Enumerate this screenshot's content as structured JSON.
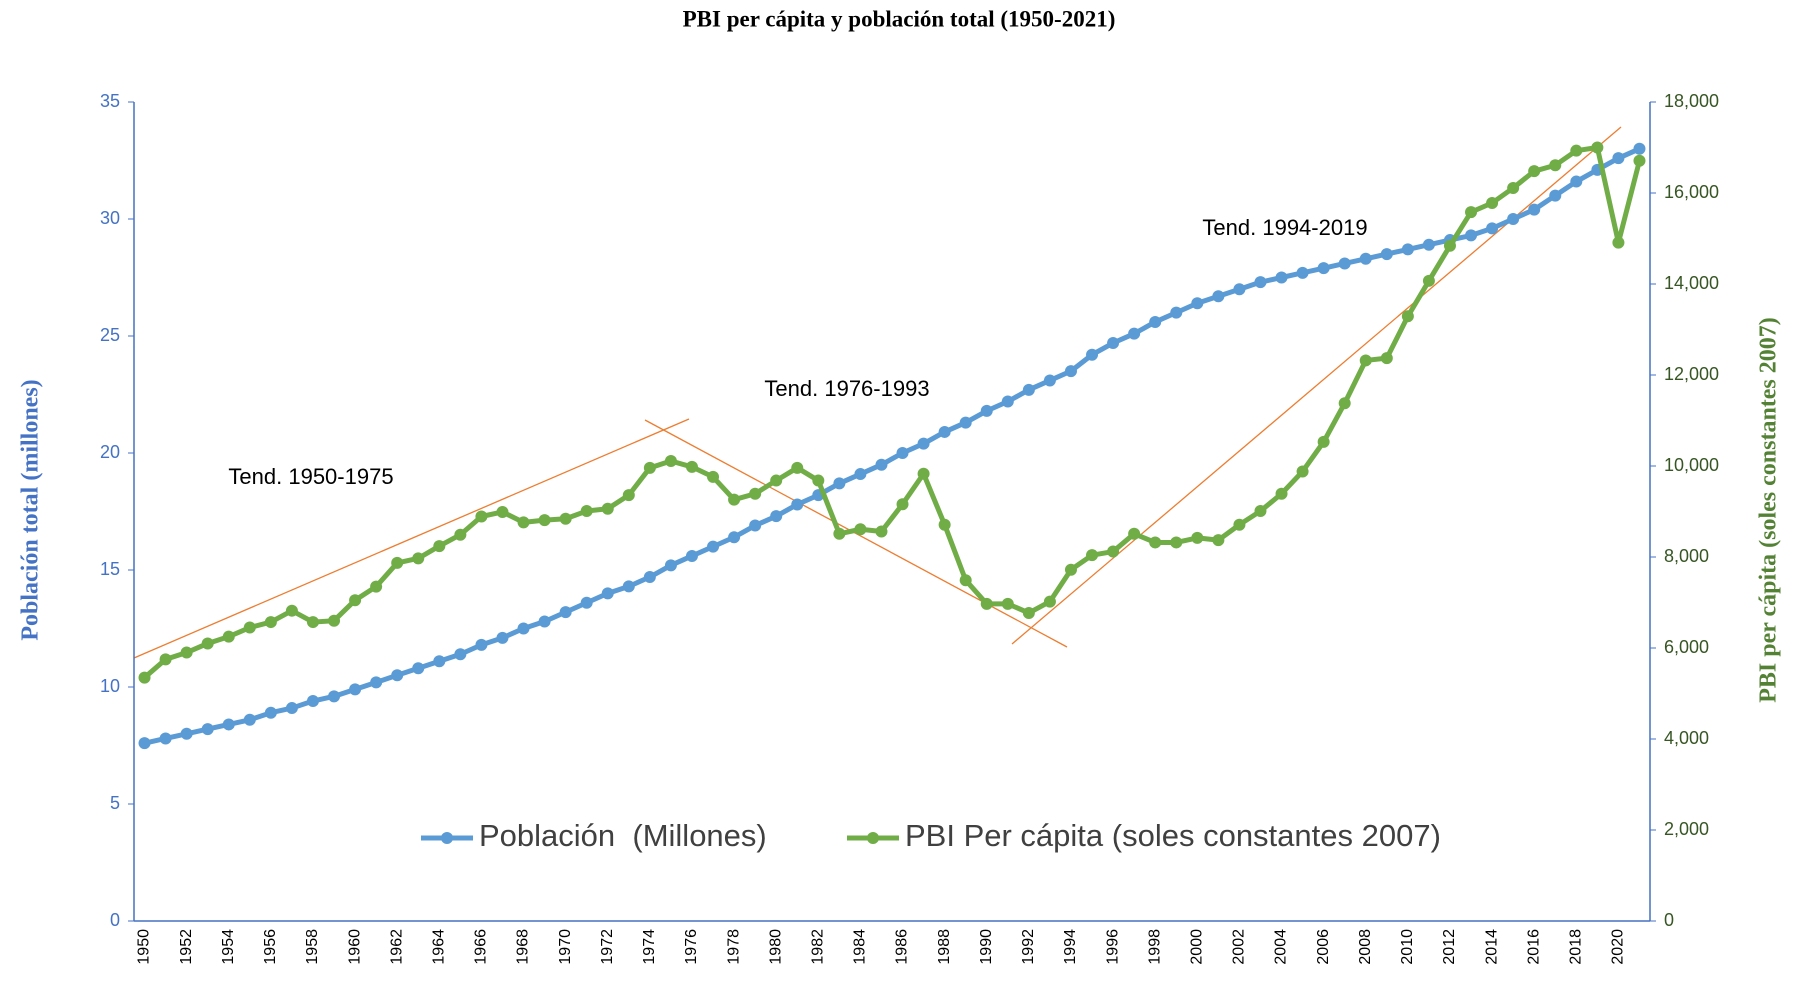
{
  "chart_data": {
    "type": "line",
    "title": "PBI per cápita y población total (1950-2021)",
    "ylabel": "Población total (millones)",
    "y2label": "PBI per cápita (soles constantes 2007)",
    "annotations": [
      "Tend. 1950-1975",
      "Tend. 1976-1993",
      "Tend. 1994-2019"
    ],
    "categories": [
      "1950",
      null,
      "1952",
      null,
      "1954",
      null,
      "1956",
      null,
      "1958",
      null,
      "1960",
      null,
      "1962",
      null,
      "1964",
      null,
      "1966",
      null,
      "1968",
      null,
      "1970",
      null,
      "1972",
      null,
      "1974",
      null,
      "1976",
      null,
      "1978",
      null,
      "1980",
      null,
      "1982",
      null,
      "1984",
      null,
      "1986",
      null,
      "1988",
      null,
      "1990",
      null,
      "1992",
      null,
      "1994",
      null,
      "1996",
      null,
      "1998",
      null,
      "2000",
      null,
      "2002",
      null,
      "2004",
      null,
      "2006",
      null,
      "2008",
      null,
      "2010",
      null,
      "2012",
      null,
      "2014",
      null,
      "2016",
      null,
      "2018",
      null,
      "2020",
      null
    ],
    "series": [
      {
        "name": "Población  (Millones)",
        "color": "#5b9bd5",
        "axis": "y",
        "values": [
          7.6,
          7.8,
          8.0,
          8.2,
          8.4,
          8.6,
          8.9,
          9.1,
          9.4,
          9.6,
          9.9,
          10.2,
          10.5,
          10.8,
          11.1,
          11.4,
          11.8,
          12.1,
          12.5,
          12.8,
          13.2,
          13.6,
          14.0,
          14.3,
          14.7,
          15.2,
          15.6,
          16.0,
          16.4,
          16.9,
          17.3,
          17.8,
          18.2,
          18.7,
          19.1,
          19.5,
          20.0,
          20.4,
          20.9,
          21.3,
          21.8,
          22.2,
          22.7,
          23.1,
          23.5,
          24.2,
          24.7,
          25.1,
          25.6,
          26.0,
          26.4,
          26.7,
          27.0,
          27.3,
          27.5,
          27.7,
          27.9,
          28.1,
          28.3,
          28.5,
          28.7,
          28.9,
          29.1,
          29.3,
          29.6,
          30.0,
          30.4,
          31.0,
          31.6,
          32.1,
          32.6,
          33.0
        ]
      },
      {
        "name": "PBI Per cápita (soles constantes 2007)",
        "color": "#70ad47",
        "axis": "y2",
        "values": [
          5350,
          5750,
          5900,
          6100,
          6250,
          6450,
          6570,
          6820,
          6570,
          6600,
          7050,
          7350,
          7870,
          7970,
          8240,
          8490,
          8890,
          8990,
          8760,
          8810,
          8840,
          9010,
          9060,
          9360,
          9960,
          10110,
          9980,
          9760,
          9260,
          9390,
          9680,
          9960,
          9680,
          8510,
          8610,
          8560,
          9160,
          9830,
          8710,
          7490,
          6970,
          6970,
          6770,
          7020,
          7720,
          8040,
          8120,
          8510,
          8320,
          8320,
          8420,
          8370,
          8710,
          9010,
          9390,
          9880,
          10530,
          11380,
          12320,
          12370,
          13290,
          14070,
          14840,
          15580,
          15780,
          16110,
          16480,
          16610,
          16930,
          17000,
          14910,
          16710
        ]
      }
    ],
    "ylim": [
      0,
      35
    ],
    "yticks": [
      0,
      5,
      10,
      15,
      20,
      25,
      30,
      35
    ],
    "y2lim": [
      0,
      18000
    ],
    "y2ticks": [
      0,
      {
        "value": 2000,
        "label": "2,000"
      },
      {
        "value": 4000,
        "label": "4,000"
      },
      {
        "value": 6000,
        "label": "6,000"
      },
      {
        "value": 8000,
        "label": "8,000"
      },
      {
        "value": 10000,
        "label": "10,000"
      },
      {
        "value": 12000,
        "label": "12,000"
      },
      {
        "value": 14000,
        "label": "14,000"
      },
      {
        "value": 16000,
        "label": "16,000"
      },
      {
        "value": 18000,
        "label": "18,000"
      }
    ],
    "legend": "bottom"
  }
}
